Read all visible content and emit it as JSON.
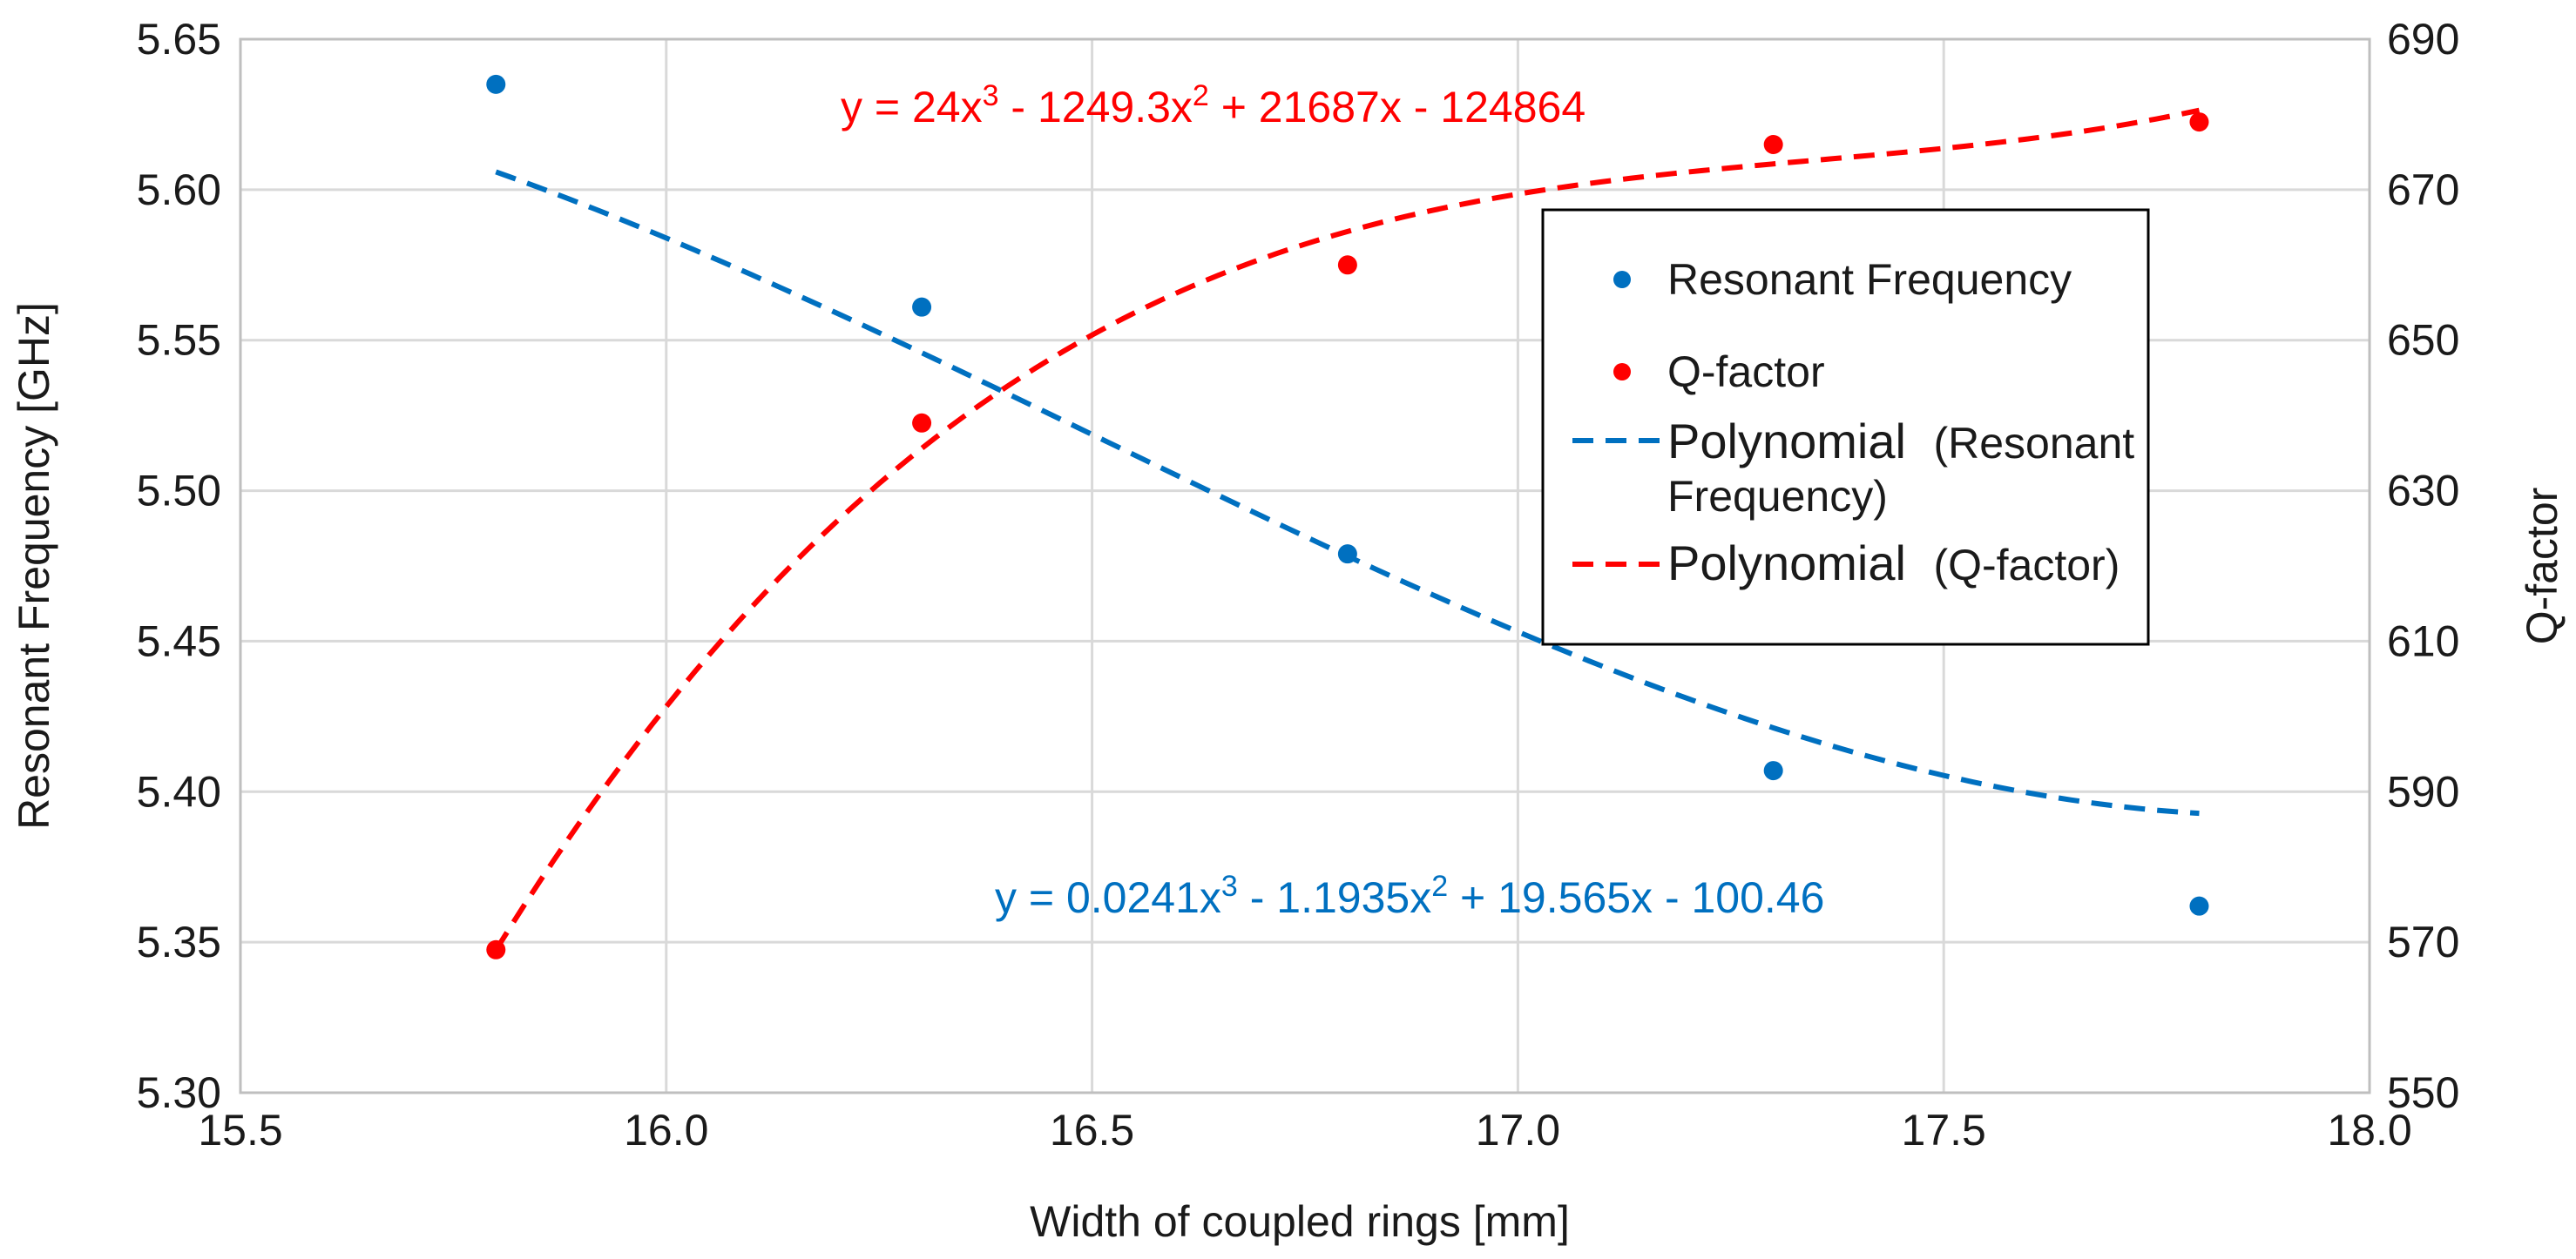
{
  "chart_data": {
    "type": "scatter",
    "x": [
      15.8,
      16.3,
      16.8,
      17.3,
      17.8
    ],
    "xlabel": "Width of coupled rings [mm]",
    "xlim": [
      15.5,
      18.0
    ],
    "x_ticks": [
      15.5,
      16.0,
      16.5,
      17.0,
      17.5,
      18.0
    ],
    "x_tick_labels": [
      "15.5",
      "16.0",
      "16.5",
      "17.0",
      "17.5",
      "18.0"
    ],
    "ylabel": "Resonant Frequency [GHz]",
    "ylim": [
      5.3,
      5.65
    ],
    "y_ticks": [
      5.3,
      5.35,
      5.4,
      5.45,
      5.5,
      5.55,
      5.6,
      5.65
    ],
    "y_tick_labels": [
      "5.30",
      "5.35",
      "5.40",
      "5.45",
      "5.50",
      "5.55",
      "5.60",
      "5.65"
    ],
    "y2label": "Q-factor",
    "y2lim": [
      550,
      690
    ],
    "y2_ticks": [
      550,
      570,
      590,
      610,
      630,
      650,
      670,
      690
    ],
    "y2_tick_labels": [
      "550",
      "570",
      "590",
      "610",
      "630",
      "650",
      "670",
      "690"
    ],
    "grid": true,
    "series": [
      {
        "name": "Resonant Frequency",
        "axis": "left",
        "color": "#0070C0",
        "values": [
          5.635,
          5.561,
          5.479,
          5.407,
          5.362
        ],
        "trendline": {
          "name": "Polynomial (Resonant Frequency)",
          "coefficients": [
            0.0241,
            -1.1935,
            19.565,
            -100.46
          ],
          "equation": "y = 0.0241x³ - 1.1935x² + 19.565x - 100.46"
        }
      },
      {
        "name": "Q-factor",
        "axis": "right",
        "color": "#FF0000",
        "values": [
          569,
          639,
          660,
          676,
          679
        ],
        "trendline": {
          "name": "Polynomial (Q-factor)",
          "coefficients": [
            24,
            -1249.3,
            21687,
            -124864
          ],
          "equation": "y = 24x³ - 1249.3x² + 21687x - 124864"
        }
      }
    ],
    "legend": {
      "position": "right-inside",
      "entries": [
        {
          "label": "Resonant Frequency",
          "kind": "marker",
          "color": "#0070C0"
        },
        {
          "label": "Q-factor",
          "kind": "marker",
          "color": "#FF0000"
        },
        {
          "label_main": "Polynomial",
          "label_rest_1": "(Resonant",
          "label_rest_2": "Frequency)",
          "kind": "dash",
          "color": "#0070C0"
        },
        {
          "label_main": "Polynomial",
          "label_rest_1": "(Q-factor)",
          "kind": "dash",
          "color": "#FF0000"
        }
      ]
    }
  }
}
